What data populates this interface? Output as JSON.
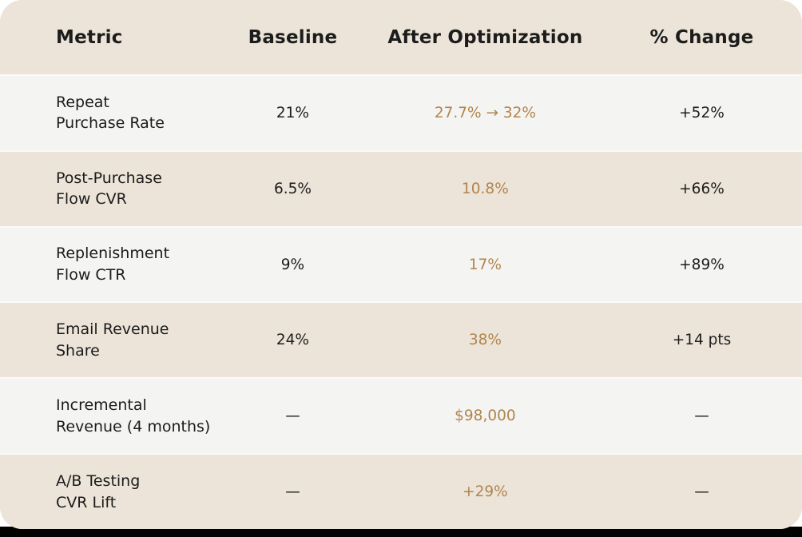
{
  "colors": {
    "accent_gold": "#b1854d",
    "beige_bg": "#ece4d8",
    "light_row_bg": "#f4f4f2",
    "divider": "#fbfaf8",
    "text_dark": "#1d1d1d",
    "behind_card_bottom": "#000000",
    "behind_card_top": "#ffffff"
  },
  "table": {
    "columns": [
      "Metric",
      "Baseline",
      "After Optimization",
      "% Change"
    ],
    "rows": [
      {
        "metric": [
          "Repeat",
          "Purchase Rate"
        ],
        "baseline": "21%",
        "after": "27.7% → 32%",
        "change": "+52%"
      },
      {
        "metric": [
          "Post-Purchase",
          "Flow CVR"
        ],
        "baseline": "6.5%",
        "after": "10.8%",
        "change": "+66%"
      },
      {
        "metric": [
          "Replenishment",
          "Flow CTR"
        ],
        "baseline": "9%",
        "after": "17%",
        "change": "+89%"
      },
      {
        "metric": [
          "Email Revenue",
          "Share"
        ],
        "baseline": "24%",
        "after": "38%",
        "change": "+14 pts"
      },
      {
        "metric": [
          "Incremental",
          "Revenue (4 months)"
        ],
        "baseline": "—",
        "after": "$98,000",
        "change": "—"
      },
      {
        "metric": [
          "A/B Testing",
          "CVR Lift"
        ],
        "baseline": "—",
        "after": "+29%",
        "change": "—"
      }
    ]
  }
}
